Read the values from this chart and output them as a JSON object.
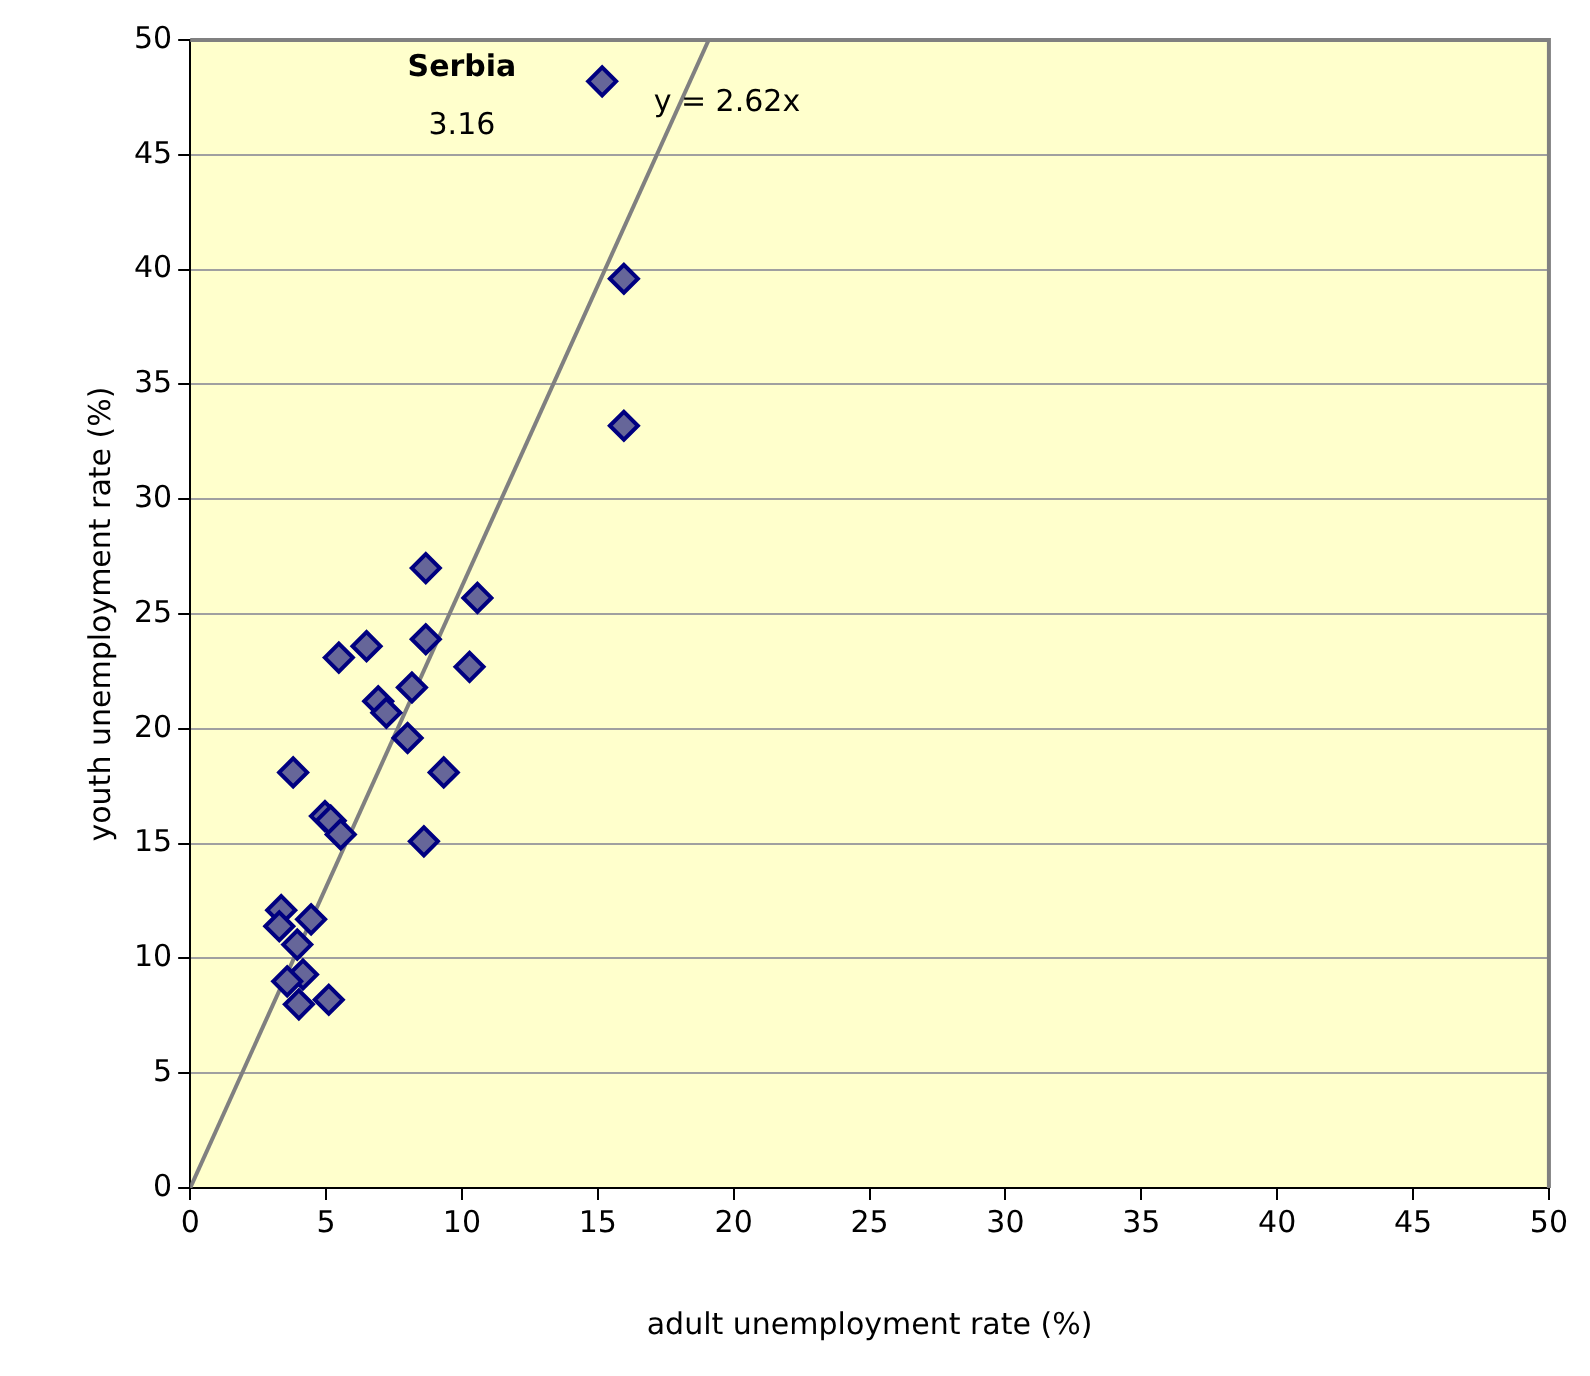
{
  "chart_data": {
    "type": "scatter",
    "xlabel": "adult unemployment rate (%)",
    "ylabel": "youth unemployment rate (%)",
    "xlim": [
      0,
      50
    ],
    "xticks": [
      0,
      5,
      10,
      15,
      20,
      25,
      30,
      35,
      40,
      45,
      50
    ],
    "ylim": [
      0,
      50
    ],
    "yticks": [
      0,
      5,
      10,
      15,
      20,
      25,
      30,
      35,
      40,
      45,
      50
    ],
    "grid": "y",
    "legend": false,
    "marker": "diamond",
    "series": [
      {
        "color": "#666699",
        "x": [
          15.16,
          15.96,
          15.96,
          10.57,
          8.67,
          8.67,
          10.28,
          6.49,
          5.47,
          8.16,
          6.92,
          7.22,
          8.0,
          9.33,
          3.79,
          8.6,
          4.96,
          5.17,
          5.54,
          3.35,
          4.45,
          3.28,
          3.94,
          4.15,
          3.57,
          4.0,
          5.1
        ],
        "values": [
          48.2,
          39.6,
          33.2,
          25.7,
          27.0,
          23.9,
          22.7,
          23.6,
          23.1,
          21.8,
          21.2,
          20.7,
          19.6,
          18.1,
          18.1,
          15.1,
          16.2,
          16.0,
          15.4,
          12.1,
          11.7,
          11.4,
          10.6,
          9.3,
          9.0,
          8.0,
          8.2
        ]
      },
      {
        "type": "line",
        "color": "#808080",
        "x": [
          0,
          19.08
        ],
        "values": [
          0,
          50
        ],
        "marker": "none"
      }
    ],
    "annotations": [
      "Serbia",
      "3.16",
      "y = 2.62x"
    ]
  }
}
